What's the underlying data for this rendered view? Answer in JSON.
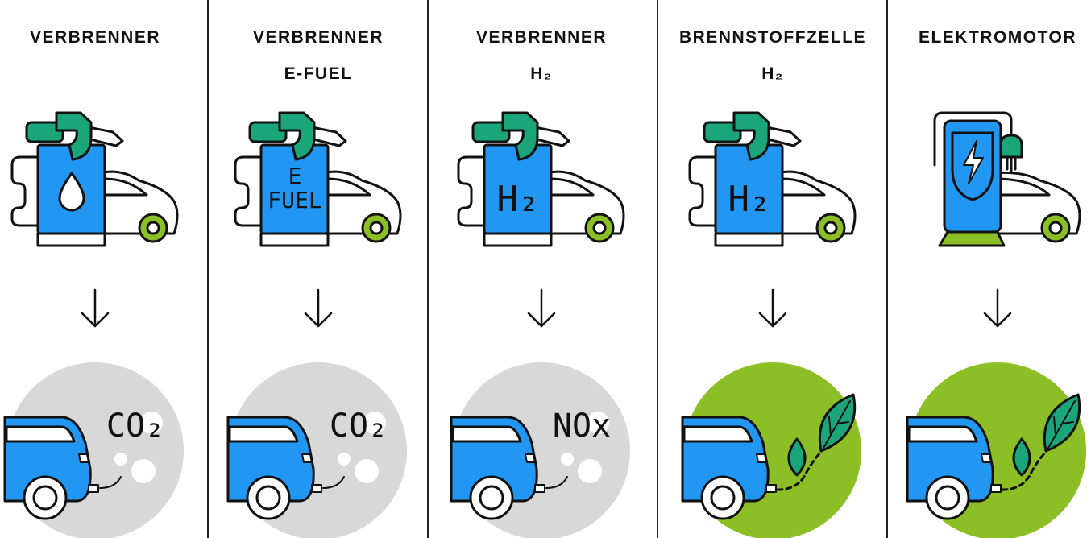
{
  "columns": [
    {
      "title": "VERBRENNER",
      "emission_label": "CO₂"
    },
    {
      "title": "VERBRENNER",
      "subtitle": "E-FUEL",
      "pump_label": [
        "E",
        "FUEL"
      ],
      "emission_label": "CO₂"
    },
    {
      "title": "VERBRENNER",
      "subtitle": "H₂",
      "pump_label": [
        "H₂"
      ],
      "emission_label": "NOx"
    },
    {
      "title": "BRENNSTOFFZELLE",
      "subtitle": "H₂",
      "pump_label": [
        "H₂"
      ]
    },
    {
      "title": "ELEKTROMOTOR"
    }
  ]
}
